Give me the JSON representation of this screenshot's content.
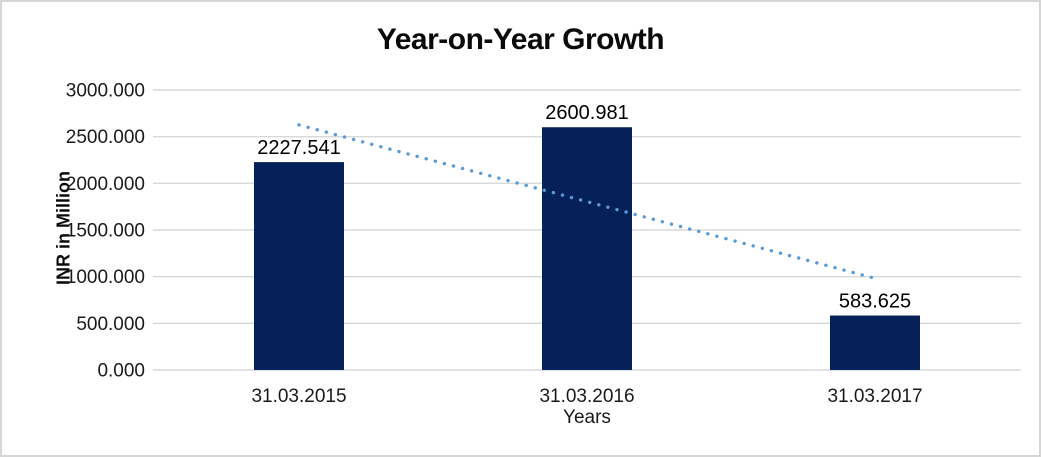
{
  "window": {
    "background": "#ffffff",
    "border_color": "#d6d6d6"
  },
  "chart_data": {
    "type": "bar",
    "title": "Year-on-Year Growth",
    "categories": [
      "31.03.2015",
      "31.03.2016",
      "31.03.2017"
    ],
    "values": [
      2227.541,
      2600.981,
      583.625
    ],
    "bar_labels": [
      "2227.541",
      "2600.981",
      "583.625"
    ],
    "xlabel": "Years",
    "ylabel": "INR in Million",
    "ylim": [
      0,
      3000
    ],
    "ytick_step": 500,
    "ytick_labels": [
      "0.000",
      "500.000",
      "1000.000",
      "1500.000",
      "2000.000",
      "2500.000",
      "3000.000"
    ],
    "grid": true,
    "legend": "none",
    "colors": {
      "bar": "#06215a",
      "trendline": "#5b9bd5",
      "gridline": "#d9d9d9",
      "tick_text": "#1a1a1a",
      "label_text": "#000000"
    },
    "trendline": {
      "kind": "linear",
      "style": "dotted",
      "start_value": 2626,
      "end_value": 982
    }
  }
}
